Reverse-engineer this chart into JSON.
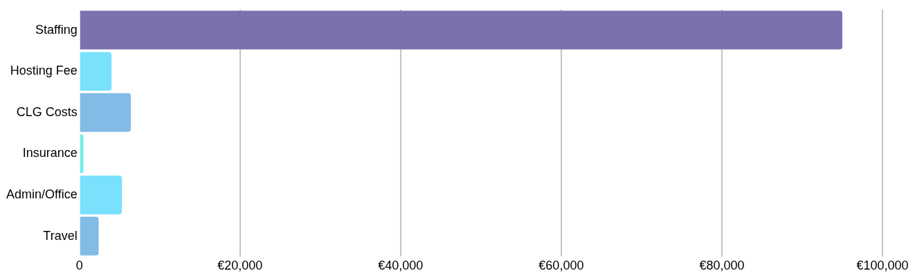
{
  "chart_data": {
    "type": "bar",
    "orientation": "horizontal",
    "categories": [
      "Staffing",
      "Hosting Fee",
      "CLG Costs",
      "Insurance",
      "Admin/Office",
      "Travel"
    ],
    "values": [
      95000,
      4000,
      6400,
      500,
      5300,
      2400
    ],
    "colors": [
      "#7b72ad",
      "#7ae1fd",
      "#82bbe6",
      "#74ecec",
      "#7ae1fd",
      "#82bbe6"
    ],
    "xlim": [
      0,
      100000
    ],
    "xticks": [
      0,
      {
        "value": 20000,
        "label": "€20,000"
      },
      {
        "value": 40000,
        "label": "€40,000"
      },
      {
        "value": 60000,
        "label": "€60,000"
      },
      {
        "value": 80000,
        "label": "€80,000"
      },
      {
        "value": 100000,
        "label": "€100,000"
      }
    ],
    "grid": "x",
    "legend": false
  }
}
